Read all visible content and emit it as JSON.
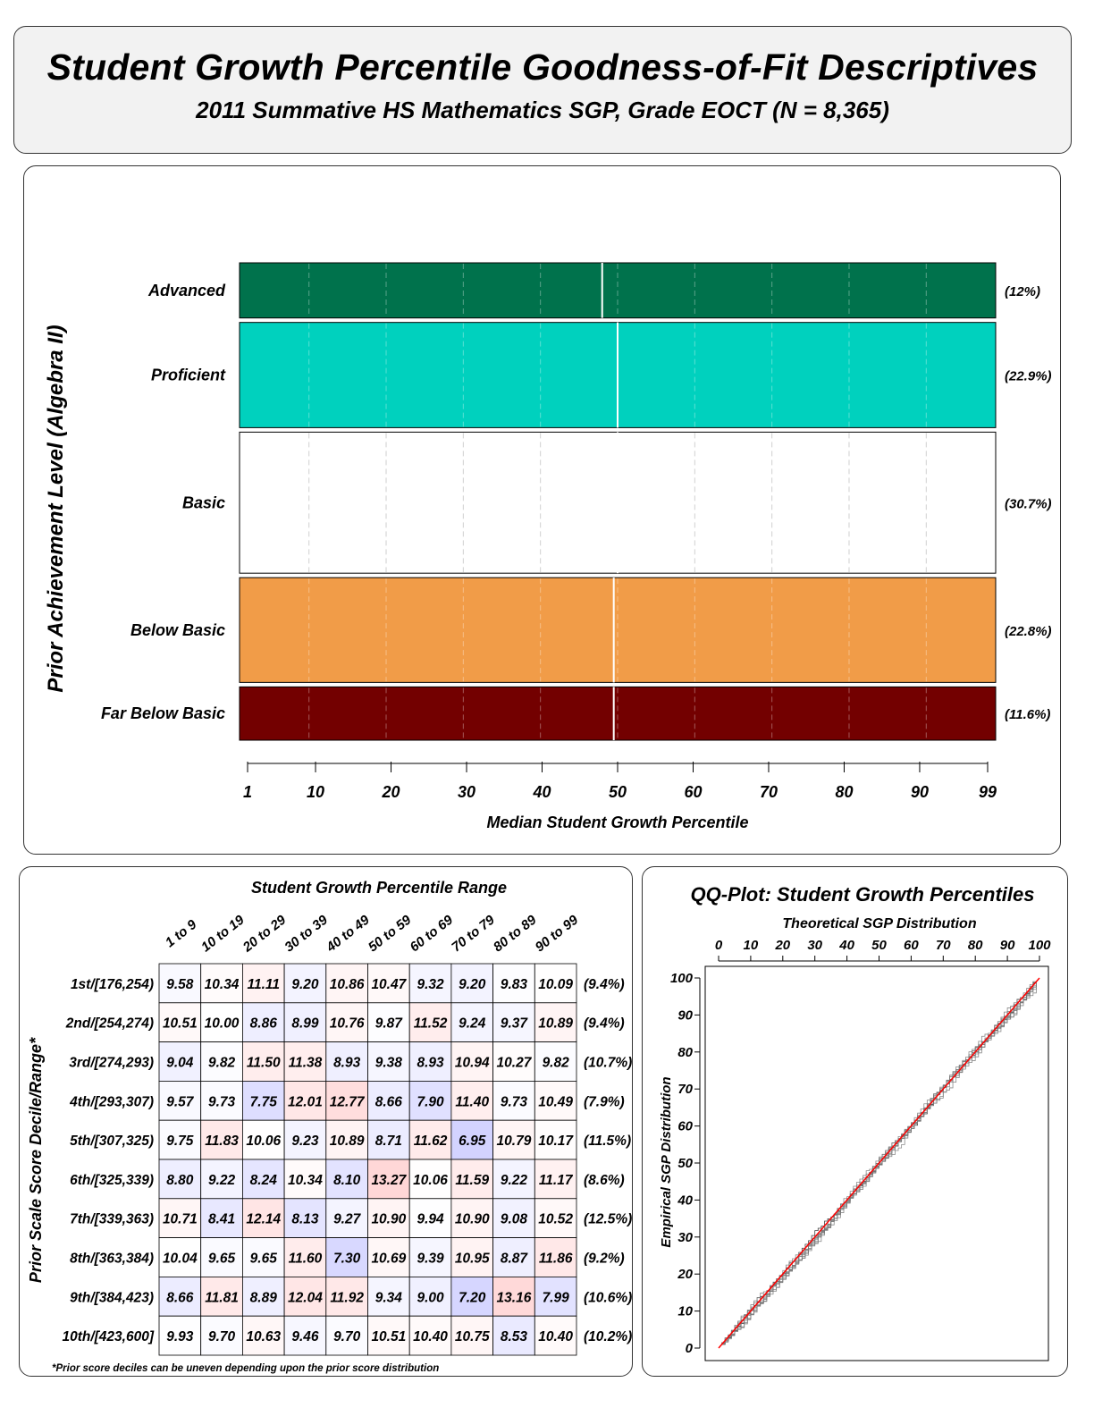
{
  "title": "Student Growth Percentile Goodness-of-Fit Descriptives",
  "subtitle": "2011 Summative HS Mathematics SGP, Grade EOCT (N = 8,365)",
  "chart_data": [
    {
      "type": "bar",
      "ylabel": "Prior Achievement Level (Algebra II)",
      "xlabel": "Median Student Growth Percentile",
      "xlim": [
        1,
        99
      ],
      "x_ticks": [
        "1",
        "10",
        "20",
        "30",
        "40",
        "50",
        "60",
        "70",
        "80",
        "90",
        "99"
      ],
      "levels": [
        {
          "label": "Advanced",
          "percent": "(12%)",
          "share": 12,
          "median_sgp": 48,
          "color": "#00724C"
        },
        {
          "label": "Proficient",
          "percent": "(22.9%)",
          "share": 22.9,
          "median_sgp": 50,
          "color": "#00D1BE"
        },
        {
          "label": "Basic",
          "percent": "(30.7%)",
          "share": 30.7,
          "median_sgp": 50,
          "color": "#FFFFFF"
        },
        {
          "label": "Below Basic",
          "percent": "(22.8%)",
          "share": 22.8,
          "median_sgp": 49.5,
          "color": "#F19C48"
        },
        {
          "label": "Far Below Basic",
          "percent": "(11.6%)",
          "share": 11.6,
          "median_sgp": 49.5,
          "color": "#730000"
        }
      ]
    },
    {
      "type": "heatmap",
      "title": "Student Growth Percentile Range",
      "ylabel": "Prior Scale Score Decile/Range*",
      "footnote": "*Prior score deciles can be uneven depending upon the prior score distribution",
      "columns": [
        "1 to 9",
        "10 to 19",
        "20 to 29",
        "30 to 39",
        "40 to 49",
        "50 to 59",
        "60 to 69",
        "70 to 79",
        "80 to 89",
        "90 to 99"
      ],
      "rows": [
        {
          "label": "1st/[176,254)",
          "values": [
            "9.58",
            "10.34",
            "11.11",
            "9.20",
            "10.86",
            "10.47",
            "9.32",
            "9.20",
            "9.83",
            "10.09"
          ],
          "percent": "(9.4%)"
        },
        {
          "label": "2nd/[254,274)",
          "values": [
            "10.51",
            "10.00",
            "8.86",
            "8.99",
            "10.76",
            "9.87",
            "11.52",
            "9.24",
            "9.37",
            "10.89"
          ],
          "percent": "(9.4%)"
        },
        {
          "label": "3rd/[274,293)",
          "values": [
            "9.04",
            "9.82",
            "11.50",
            "11.38",
            "8.93",
            "9.38",
            "8.93",
            "10.94",
            "10.27",
            "9.82"
          ],
          "percent": "(10.7%)"
        },
        {
          "label": "4th/[293,307)",
          "values": [
            "9.57",
            "9.73",
            "7.75",
            "12.01",
            "12.77",
            "8.66",
            "7.90",
            "11.40",
            "9.73",
            "10.49"
          ],
          "percent": "(7.9%)"
        },
        {
          "label": "5th/[307,325)",
          "values": [
            "9.75",
            "11.83",
            "10.06",
            "9.23",
            "10.89",
            "8.71",
            "11.62",
            "6.95",
            "10.79",
            "10.17"
          ],
          "percent": "(11.5%)"
        },
        {
          "label": "6th/[325,339)",
          "values": [
            "8.80",
            "9.22",
            "8.24",
            "10.34",
            "8.10",
            "13.27",
            "10.06",
            "11.59",
            "9.22",
            "11.17"
          ],
          "percent": "(8.6%)"
        },
        {
          "label": "7th/[339,363)",
          "values": [
            "10.71",
            "8.41",
            "12.14",
            "8.13",
            "9.27",
            "10.90",
            "9.94",
            "10.90",
            "9.08",
            "10.52"
          ],
          "percent": "(12.5%)"
        },
        {
          "label": "8th/[363,384)",
          "values": [
            "10.04",
            "9.65",
            "9.65",
            "11.60",
            "7.30",
            "10.69",
            "9.39",
            "10.95",
            "8.87",
            "11.86"
          ],
          "percent": "(9.2%)"
        },
        {
          "label": "9th/[384,423)",
          "values": [
            "8.66",
            "11.81",
            "8.89",
            "12.04",
            "11.92",
            "9.34",
            "9.00",
            "7.20",
            "13.16",
            "7.99"
          ],
          "percent": "(10.6%)"
        },
        {
          "label": "10th/[423,600]",
          "values": [
            "9.93",
            "9.70",
            "10.63",
            "9.46",
            "9.70",
            "10.51",
            "10.40",
            "10.75",
            "8.53",
            "10.40"
          ],
          "percent": "(10.2%)"
        }
      ]
    },
    {
      "type": "scatter",
      "title": "QQ-Plot: Student Growth Percentiles",
      "xlabel": "Theoretical SGP Distribution",
      "ylabel": "Empirical SGP Distribution",
      "xlim": [
        0,
        100
      ],
      "ylim": [
        0,
        100
      ],
      "x_ticks": [
        "0",
        "10",
        "20",
        "30",
        "40",
        "50",
        "60",
        "70",
        "80",
        "90",
        "100"
      ],
      "y_ticks": [
        "0",
        "10",
        "20",
        "30",
        "40",
        "50",
        "60",
        "70",
        "80",
        "90",
        "100"
      ],
      "reference_line": {
        "from": [
          0,
          0
        ],
        "to": [
          100,
          100
        ],
        "color": "#FF0000"
      },
      "series_color": "#777777"
    }
  ]
}
